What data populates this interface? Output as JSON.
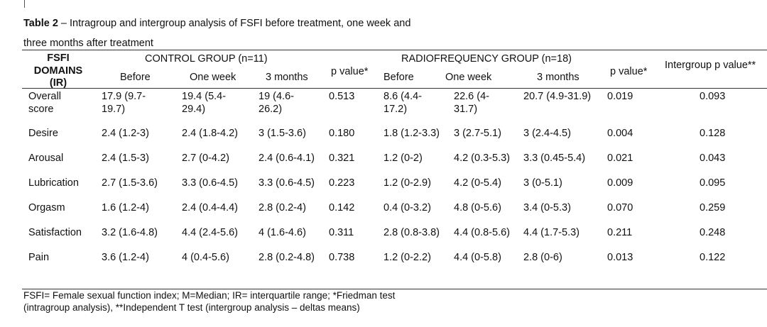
{
  "caption": {
    "label": "Table 2",
    "text_line1": " – Intragroup and intergroup analysis of FSFI before treatment, one week and",
    "text_line2": "three months after treatment"
  },
  "header": {
    "domains_l1": "FSFI",
    "domains_l2": "DOMAINS",
    "domains_l3": "(IR)",
    "control_group": "CONTROL GROUP (n=11)",
    "rf_group": "RADIOFREQUENCY GROUP (n=18)",
    "before": "Before",
    "one_week": "One week",
    "three_months": "3 months",
    "p_value": "p value*",
    "intergroup": "Intergroup p value**"
  },
  "rows": [
    {
      "domain_l1": "Overall",
      "domain_l2": "score",
      "c_before_l1": "17.9 (9.7-",
      "c_before_l2": "19.7)",
      "c_week_l1": "19.4 (5.4-",
      "c_week_l2": "29.4)",
      "c_3m_l1": "19 (4.6-",
      "c_3m_l2": "26.2)",
      "c_p": "0.513",
      "r_before_l1": "8.6 (4.4-",
      "r_before_l2": "17.2)",
      "r_week_l1": "22.6 (4-",
      "r_week_l2": "31.7)",
      "r_3m": "20.7 (4.9-31.9)",
      "r_p": "0.019",
      "inter_p": "0.093"
    },
    {
      "domain": "Desire",
      "c_before": "2.4 (1.2-3)",
      "c_week": "2.4 (1.8-4.2)",
      "c_3m": "3 (1.5-3.6)",
      "c_p": "0.180",
      "r_before": "1.8 (1.2-3.3)",
      "r_week": "3 (2.7-5.1)",
      "r_3m": "3 (2.4-4.5)",
      "r_p": "0.004",
      "inter_p": "0.128"
    },
    {
      "domain": "Arousal",
      "c_before": "2.4 (1.5-3)",
      "c_week": "2.7 (0-4.2)",
      "c_3m": "2.4 (0.6-4.1)",
      "c_p": "0.321",
      "r_before": "1.2 (0-2)",
      "r_week": "4.2 (0.3-5.3)",
      "r_3m": "3.3 (0.45-5.4)",
      "r_p": "0.021",
      "inter_p": "0.043"
    },
    {
      "domain": "Lubrication",
      "c_before": "2.7 (1.5-3.6)",
      "c_week": "3.3 (0.6-4.5)",
      "c_3m": "3.3 (0.6-4.5)",
      "c_p": "0.223",
      "r_before": "1.2 (0-2.9)",
      "r_week": "4.2 (0-5.4)",
      "r_3m": "3 (0-5.1)",
      "r_p": "0.009",
      "inter_p": "0.095"
    },
    {
      "domain": "Orgasm",
      "c_before": "1.6 (1.2-4)",
      "c_week": "2.4 (0.4-4.4)",
      "c_3m": "2.8 (0.2-4)",
      "c_p": "0.142",
      "r_before": "0.4 (0-3.2)",
      "r_week": "4.8 (0-5.6)",
      "r_3m": "3.4 (0-5.3)",
      "r_p": "0.070",
      "inter_p": "0.259"
    },
    {
      "domain": "Satisfaction",
      "c_before": "3.2 (1.6-4.8)",
      "c_week": "4.4 (2.4-5.6)",
      "c_3m": "4 (1.6-4.6)",
      "c_p": "0.311",
      "r_before": "2.8 (0.8-3.8)",
      "r_week": "4.4 (0.8-5.6)",
      "r_3m": "4.4 (1.7-5.3)",
      "r_p": "0.211",
      "inter_p": "0.248"
    },
    {
      "domain": "Pain",
      "c_before": "3.6 (1.2-4)",
      "c_week": "4 (0.4-5.6)",
      "c_3m": "2.8 (0.2-4.8)",
      "c_p": "0.738",
      "r_before": "1.2 (0-2.2)",
      "r_week": "4.4 (0-5.8)",
      "r_3m": "2.8 (0-6)",
      "r_p": "0.013",
      "inter_p": "0.122"
    }
  ],
  "footnote": {
    "line1": "FSFI= Female sexual function index; M=Median; IR= interquartile range; *Friedman test",
    "line2": "(intragroup analysis), **Independent T test (intergroup analysis – deltas means)"
  }
}
